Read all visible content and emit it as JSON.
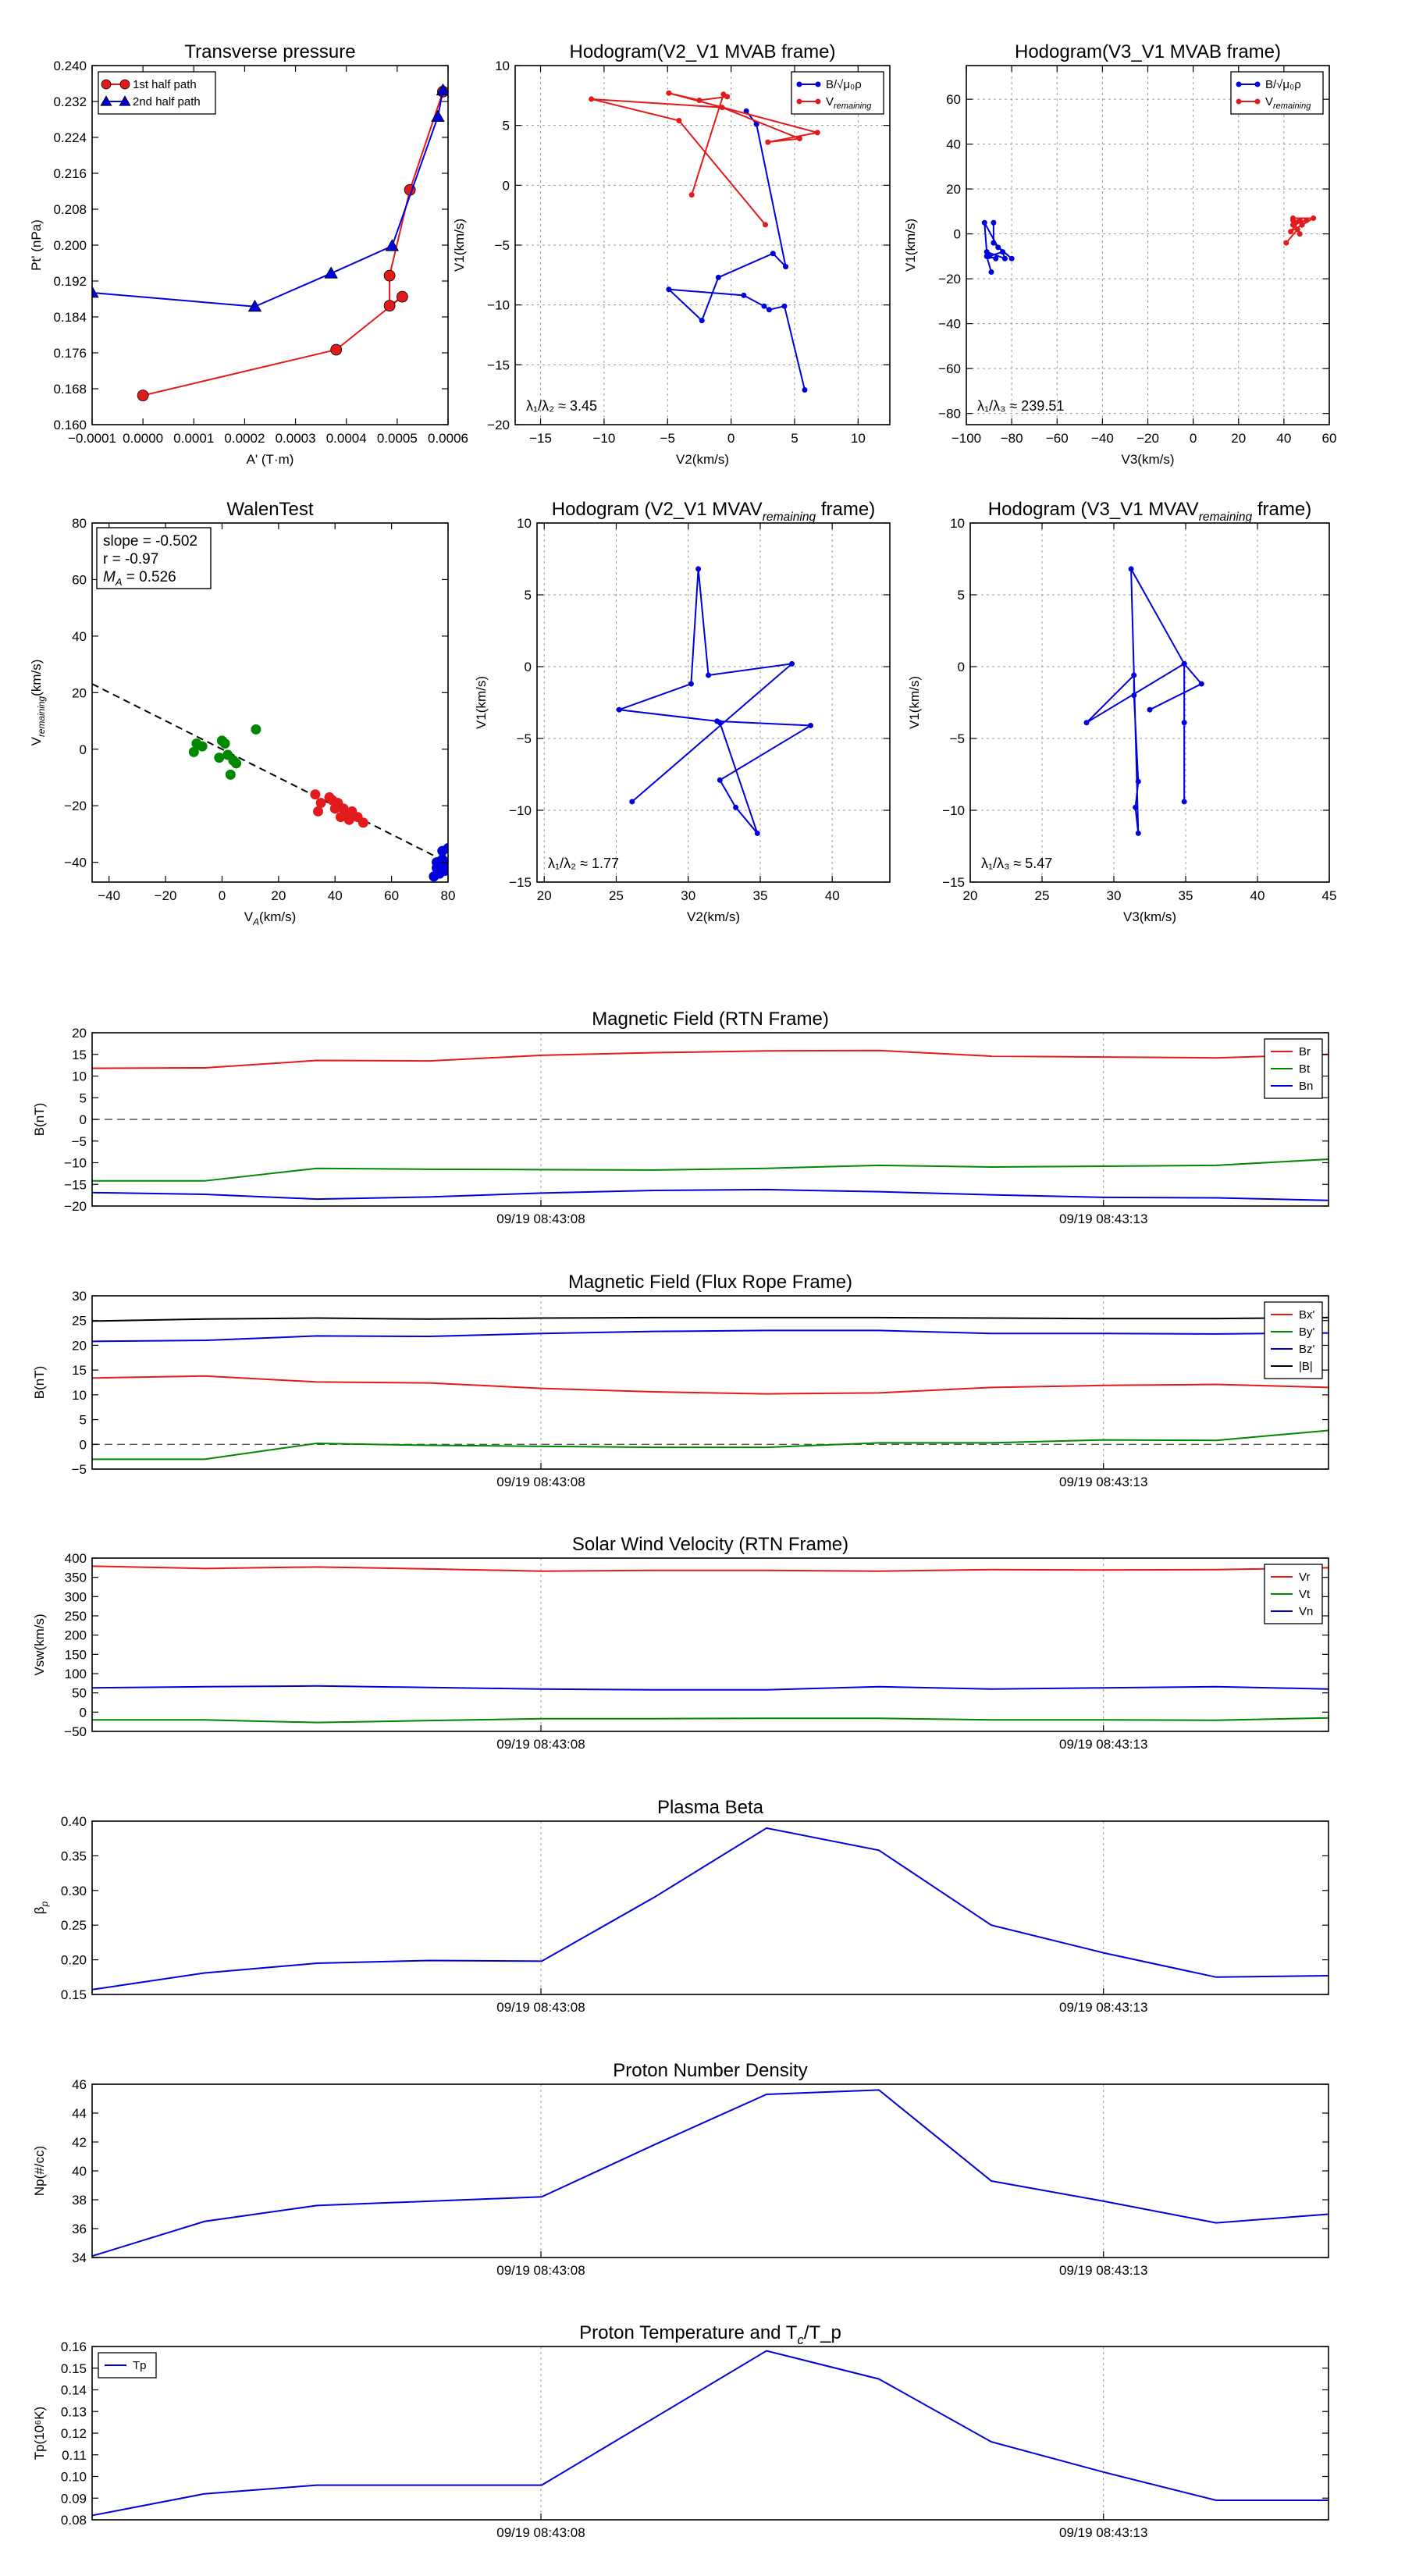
{
  "chart_data": [
    {
      "id": "tp",
      "type": "scatter",
      "title": "Transverse pressure",
      "xlabel": "A' (T·m)",
      "ylabel": "Pt' (nPa)",
      "xlim": [
        -0.0001,
        0.0006
      ],
      "ylim": [
        0.16,
        0.24
      ],
      "xticks": [
        -0.0001,
        0,
        0.0001,
        0.0002,
        0.0003,
        0.0004,
        0.0005,
        0.0006
      ],
      "xtick_labels": [
        "−0.0001",
        "0.0000",
        "0.0001",
        "0.0002",
        "0.0003",
        "0.0004",
        "0.0005",
        "0.0006"
      ],
      "yticks": [
        0.16,
        0.168,
        0.176,
        0.184,
        0.192,
        0.2,
        0.208,
        0.216,
        0.224,
        0.232,
        0.24
      ],
      "ytick_labels": [
        "0.160",
        "0.168",
        "0.176",
        "0.184",
        "0.192",
        "0.200",
        "0.208",
        "0.216",
        "0.224",
        "0.232",
        "0.240"
      ],
      "grid": false,
      "legend": "upper-left",
      "series": [
        {
          "name": "1st half path",
          "marker": "circle",
          "color": "#e31a1c",
          "x": [
            0.0,
            0.00038,
            0.00051,
            0.000485,
            0.000485,
            0.000525,
            0.00059
          ],
          "y": [
            0.1665,
            0.1767,
            0.1885,
            0.1865,
            0.1932,
            0.2123,
            0.2342
          ]
        },
        {
          "name": "2nd half path",
          "marker": "triangle",
          "color": "#0000dd",
          "x": [
            -0.0001,
            0.00022,
            0.00037,
            0.00049,
            0.00058,
            0.00059
          ],
          "y": [
            0.1894,
            0.1863,
            0.1937,
            0.1998,
            0.2286,
            0.2345
          ]
        }
      ]
    },
    {
      "id": "h12",
      "type": "line",
      "title": "Hodogram(V2_V1 MVAB frame)",
      "xlabel": "V2(km/s)",
      "ylabel": "V1(km/s)",
      "xlim": [
        -17,
        12.5
      ],
      "ylim": [
        -20,
        10
      ],
      "xticks": [
        -15,
        -10,
        -5,
        0,
        5,
        10
      ],
      "xtick_labels": [
        "−15",
        "−10",
        "−5",
        "0",
        "5",
        "10"
      ],
      "yticks": [
        -20,
        -15,
        -10,
        -5,
        0,
        5,
        10
      ],
      "ytick_labels": [
        "−20",
        "−15",
        "−10",
        "−5",
        "0",
        "5",
        "10"
      ],
      "grid": true,
      "legend": "upper-right",
      "annotation": "λ₁/λ₂ ≈ 3.45",
      "series": [
        {
          "name": "B/√μ₀ρ",
          "color": "#0000dd",
          "x": [
            5.8,
            4.2,
            3.0,
            2.6,
            1.0,
            -4.9,
            -2.3,
            -1.0,
            3.3,
            4.3,
            2.0,
            1.2
          ],
          "y": [
            -17.1,
            -10.1,
            -10.4,
            -10.1,
            -9.2,
            -8.7,
            -11.3,
            -7.7,
            -5.7,
            -6.8,
            5.1,
            6.2
          ]
        },
        {
          "name": "V_remaining",
          "color": "#e31a1c",
          "x": [
            2.7,
            -4.1,
            -11.0,
            -0.7,
            5.4,
            2.9,
            6.8,
            -4.9,
            -2.5,
            -0.3,
            -0.6,
            -3.1
          ],
          "y": [
            -3.3,
            5.4,
            7.2,
            6.5,
            3.9,
            3.6,
            4.4,
            7.7,
            7.1,
            7.4,
            7.6,
            -0.8
          ]
        }
      ]
    },
    {
      "id": "h13",
      "type": "line",
      "title": "Hodogram(V3_V1 MVAB frame)",
      "xlabel": "V3(km/s)",
      "ylabel": "V1(km/s)",
      "xlim": [
        -100,
        60
      ],
      "ylim": [
        -85,
        75
      ],
      "xticks": [
        -100,
        -80,
        -60,
        -40,
        -20,
        0,
        20,
        40,
        60
      ],
      "xtick_labels": [
        "−100",
        "−80",
        "−60",
        "−40",
        "−20",
        "0",
        "20",
        "40",
        "60"
      ],
      "yticks": [
        -80,
        -60,
        -40,
        -20,
        0,
        20,
        40,
        60
      ],
      "ytick_labels": [
        "−80",
        "−60",
        "−40",
        "−20",
        "0",
        "20",
        "40",
        "60"
      ],
      "grid": true,
      "legend": "upper-right",
      "annotation": "λ₁/λ₃ ≈ 239.51",
      "series": [
        {
          "name": "B/√μ₀ρ",
          "color": "#0000dd",
          "x": [
            -89,
            -91,
            -87,
            -90,
            -84,
            -83,
            -91,
            -92,
            -86,
            -80,
            -88,
            -88
          ],
          "y": [
            -17,
            -10,
            -11,
            -10,
            -8,
            -11,
            -8,
            5,
            -6,
            -11,
            -4,
            5
          ]
        },
        {
          "name": "V_remaining",
          "color": "#e31a1c",
          "x": [
            41,
            46,
            44,
            50,
            45,
            44,
            53,
            48,
            43,
            47,
            44,
            47
          ],
          "y": [
            -4,
            2,
            4,
            6,
            5,
            7,
            7,
            4,
            1,
            6,
            6,
            0
          ]
        }
      ]
    },
    {
      "id": "walen",
      "type": "scatter",
      "title": "WalenTest",
      "xlabel": "V_A(km/s)",
      "ylabel": "V_remaining(km/s)",
      "xlim": [
        -46,
        80
      ],
      "ylim": [
        -47,
        80
      ],
      "xticks": [
        -40,
        -20,
        0,
        20,
        40,
        60,
        80
      ],
      "xtick_labels": [
        "−40",
        "−20",
        "0",
        "20",
        "40",
        "60",
        "80"
      ],
      "yticks": [
        -40,
        -20,
        0,
        20,
        40,
        60,
        80
      ],
      "ytick_labels": [
        "−40",
        "−20",
        "0",
        "20",
        "40",
        "60",
        "80"
      ],
      "grid": false,
      "stats": [
        "slope = -0.502",
        "r = -0.97",
        "M_A = 0.526"
      ],
      "fit": {
        "slope": -0.502,
        "intercept": 0.0
      },
      "series": [
        {
          "name": "green",
          "color": "#008800",
          "x": [
            -10,
            -7,
            0,
            1,
            2,
            4,
            12,
            5,
            3,
            -1,
            -9
          ],
          "y": [
            -1,
            1,
            3,
            2,
            -2,
            -4,
            7,
            -5,
            -9,
            -3,
            2
          ]
        },
        {
          "name": "red",
          "color": "#e31a1c",
          "x": [
            33,
            35,
            38,
            40,
            41,
            43,
            44,
            45,
            46,
            48,
            50,
            42,
            39,
            34
          ],
          "y": [
            -16,
            -19,
            -17,
            -21,
            -19,
            -21,
            -23,
            -25,
            -22,
            -24,
            -26,
            -24,
            -18,
            -22
          ]
        },
        {
          "name": "blue",
          "color": "#0000dd",
          "x": [
            75,
            76,
            78,
            79,
            80,
            78,
            77,
            79,
            80,
            76,
            79
          ],
          "y": [
            -45,
            -42,
            -39,
            -40,
            -41,
            -36,
            -44,
            -43,
            -35,
            -40,
            -42
          ]
        }
      ]
    },
    {
      "id": "hr12",
      "type": "line",
      "title": "Hodogram (V2_V1 MVAV_remaining frame)",
      "xlabel": "V2(km/s)",
      "ylabel": "V1(km/s)",
      "xlim": [
        19.5,
        44
      ],
      "ylim": [
        -15,
        10
      ],
      "xticks": [
        20,
        25,
        30,
        35,
        40
      ],
      "xtick_labels": [
        "20",
        "25",
        "30",
        "35",
        "40"
      ],
      "yticks": [
        -15,
        -10,
        -5,
        0,
        5,
        10
      ],
      "ytick_labels": [
        "−15",
        "−10",
        "−5",
        "0",
        "5",
        "10"
      ],
      "grid": true,
      "annotation": "λ₁/λ₂ ≈ 1.77",
      "series": [
        {
          "name": "V",
          "color": "#0000dd",
          "x": [
            26.1,
            37.2,
            31.4,
            30.7,
            30.2,
            25.2,
            32.0,
            38.5,
            32.2,
            33.3,
            34.8,
            32.2
          ],
          "y": [
            -9.4,
            0.2,
            -0.6,
            6.8,
            -1.2,
            -3.0,
            -3.8,
            -4.1,
            -7.9,
            -9.8,
            -11.6,
            -3.9
          ]
        }
      ]
    },
    {
      "id": "hr13",
      "type": "line",
      "title": "Hodogram (V3_V1 MVAV_remaining frame)",
      "xlabel": "V3(km/s)",
      "ylabel": "V1(km/s)",
      "xlim": [
        20,
        45
      ],
      "ylim": [
        -15,
        10
      ],
      "xticks": [
        20,
        25,
        30,
        35,
        40,
        45
      ],
      "xtick_labels": [
        "20",
        "25",
        "30",
        "35",
        "40",
        "45"
      ],
      "yticks": [
        -15,
        -10,
        -5,
        0,
        5,
        10
      ],
      "ytick_labels": [
        "−15",
        "−10",
        "−5",
        "0",
        "5",
        "10"
      ],
      "grid": true,
      "annotation": "λ₁/λ₃ ≈ 5.47",
      "series": [
        {
          "name": "V",
          "color": "#0000dd",
          "x": [
            34.9,
            34.9,
            34.9,
            28.1,
            31.4,
            31.4,
            31.7,
            31.5,
            31.7,
            31.2,
            34.9,
            36.1,
            32.5
          ],
          "y": [
            -9.4,
            -3.9,
            0.2,
            -3.9,
            -0.6,
            -2.0,
            -8.0,
            -9.8,
            -11.6,
            6.8,
            0.2,
            -1.2,
            -3.0
          ]
        }
      ]
    },
    {
      "id": "bf_rtn",
      "type": "line",
      "title": "Magnetic Field (RTN Frame)",
      "ylabel": "B(nT)",
      "ylim": [
        -20,
        20
      ],
      "yticks": [
        -20,
        -15,
        -10,
        -5,
        0,
        5,
        10,
        15,
        20
      ],
      "ytick_labels": [
        "−20",
        "−15",
        "−10",
        "−5",
        "0",
        "5",
        "10",
        "15",
        "20"
      ],
      "xtick_labels": [
        "09/19 08:43:08",
        "09/19 08:43:13"
      ],
      "legend": "upper-right",
      "zero_line": true,
      "series": [
        {
          "name": "Br",
          "color": "#e31a1c",
          "values": [
            11.8,
            11.9,
            13.6,
            13.5,
            14.8,
            15.4,
            15.8,
            15.9,
            14.6,
            14.4,
            14.2,
            15.0
          ]
        },
        {
          "name": "Bt",
          "color": "#008800",
          "values": [
            -14.2,
            -14.2,
            -11.3,
            -11.5,
            -11.6,
            -11.7,
            -11.3,
            -10.6,
            -11.0,
            -10.8,
            -10.6,
            -9.2
          ]
        },
        {
          "name": "Bn",
          "color": "#0000dd",
          "values": [
            -16.9,
            -17.3,
            -18.4,
            -17.9,
            -17.0,
            -16.4,
            -16.2,
            -16.7,
            -17.4,
            -18.0,
            -18.1,
            -18.7
          ]
        }
      ]
    },
    {
      "id": "bf_fr",
      "type": "line",
      "title": "Magnetic Field (Flux Rope Frame)",
      "ylabel": "B(nT)",
      "ylim": [
        -5,
        30
      ],
      "yticks": [
        -5,
        0,
        5,
        10,
        15,
        20,
        25,
        30
      ],
      "ytick_labels": [
        "−5",
        "0",
        "5",
        "10",
        "15",
        "20",
        "25",
        "30"
      ],
      "xtick_labels": [
        "09/19 08:43:08",
        "09/19 08:43:13"
      ],
      "legend": "upper-right",
      "zero_line": true,
      "series": [
        {
          "name": "Bx'",
          "color": "#e31a1c",
          "values": [
            13.4,
            13.8,
            12.6,
            12.4,
            11.3,
            10.6,
            10.2,
            10.4,
            11.5,
            11.9,
            12.1,
            11.5
          ]
        },
        {
          "name": "By'",
          "color": "#008800",
          "values": [
            -3.0,
            -3.0,
            0.2,
            -0.2,
            -0.4,
            -0.6,
            -0.6,
            0.3,
            0.3,
            0.9,
            0.8,
            2.8
          ]
        },
        {
          "name": "Bz'",
          "color": "#0000dd",
          "values": [
            20.8,
            21.0,
            21.9,
            21.8,
            22.4,
            22.8,
            23.0,
            23.0,
            22.4,
            22.4,
            22.3,
            22.5
          ]
        },
        {
          "name": "|B|",
          "color": "#000000",
          "values": [
            24.9,
            25.3,
            25.5,
            25.3,
            25.5,
            25.6,
            25.6,
            25.6,
            25.5,
            25.4,
            25.4,
            25.6
          ]
        }
      ]
    },
    {
      "id": "vsw",
      "type": "line",
      "title": "Solar Wind Velocity (RTN Frame)",
      "ylabel": "Vsw(km/s)",
      "ylim": [
        -50,
        400
      ],
      "yticks": [
        -50,
        0,
        50,
        100,
        150,
        200,
        250,
        300,
        350,
        400
      ],
      "ytick_labels": [
        "−50",
        "0",
        "50",
        "100",
        "150",
        "200",
        "250",
        "300",
        "350",
        "400"
      ],
      "xtick_labels": [
        "09/19 08:43:08",
        "09/19 08:43:13"
      ],
      "legend": "upper-right",
      "series": [
        {
          "name": "Vr",
          "color": "#e31a1c",
          "values": [
            379,
            373,
            377,
            372,
            366,
            368,
            368,
            366,
            370,
            369,
            370,
            375
          ]
        },
        {
          "name": "Vt",
          "color": "#008800",
          "values": [
            -20,
            -20,
            -27,
            -22,
            -17,
            -17,
            -16,
            -16,
            -20,
            -20,
            -21,
            -15
          ]
        },
        {
          "name": "Vn",
          "color": "#0000dd",
          "values": [
            63,
            66,
            68,
            64,
            60,
            58,
            58,
            66,
            60,
            63,
            66,
            60
          ]
        }
      ]
    },
    {
      "id": "beta",
      "type": "line",
      "title": "Plasma Beta",
      "ylabel": "β_p",
      "ylim": [
        0.15,
        0.4
      ],
      "yticks": [
        0.15,
        0.2,
        0.25,
        0.3,
        0.35,
        0.4
      ],
      "ytick_labels": [
        "0.15",
        "0.20",
        "0.25",
        "0.30",
        "0.35",
        "0.40"
      ],
      "xtick_labels": [
        "09/19 08:43:08",
        "09/19 08:43:13"
      ],
      "series": [
        {
          "name": "beta",
          "color": "#0000dd",
          "values": [
            0.157,
            0.181,
            0.195,
            0.199,
            0.198,
            0.29,
            0.39,
            0.358,
            0.25,
            0.21,
            0.175,
            0.177
          ]
        }
      ]
    },
    {
      "id": "np",
      "type": "line",
      "title": "Proton Number Density",
      "ylabel": "Np(#/cc)",
      "ylim": [
        34,
        46
      ],
      "yticks": [
        34,
        36,
        38,
        40,
        42,
        44,
        46
      ],
      "ytick_labels": [
        "34",
        "36",
        "38",
        "40",
        "42",
        "44",
        "46"
      ],
      "xtick_labels": [
        "09/19 08:43:08",
        "09/19 08:43:13"
      ],
      "series": [
        {
          "name": "Np",
          "color": "#0000dd",
          "values": [
            34.1,
            36.5,
            37.6,
            37.9,
            38.2,
            41.8,
            45.3,
            45.6,
            39.3,
            37.9,
            36.4,
            37.0
          ]
        }
      ]
    },
    {
      "id": "tp_t",
      "type": "line",
      "title": "Proton Temperature and T_c/T_p",
      "ylabel": "Tp(10⁶K)",
      "ylim": [
        0.08,
        0.16
      ],
      "yticks": [
        0.08,
        0.09,
        0.1,
        0.11,
        0.12,
        0.13,
        0.14,
        0.15,
        0.16
      ],
      "ytick_labels": [
        "0.08",
        "0.09",
        "0.10",
        "0.11",
        "0.12",
        "0.13",
        "0.14",
        "0.15",
        "0.16"
      ],
      "xtick_labels": [
        "09/19 08:43:08",
        "09/19 08:43:13"
      ],
      "legend": "upper-left",
      "series": [
        {
          "name": "Tp",
          "color": "#0000dd",
          "values": [
            0.082,
            0.092,
            0.096,
            0.096,
            0.096,
            0.127,
            0.158,
            0.145,
            0.116,
            0.102,
            0.089,
            0.089
          ]
        }
      ]
    }
  ]
}
